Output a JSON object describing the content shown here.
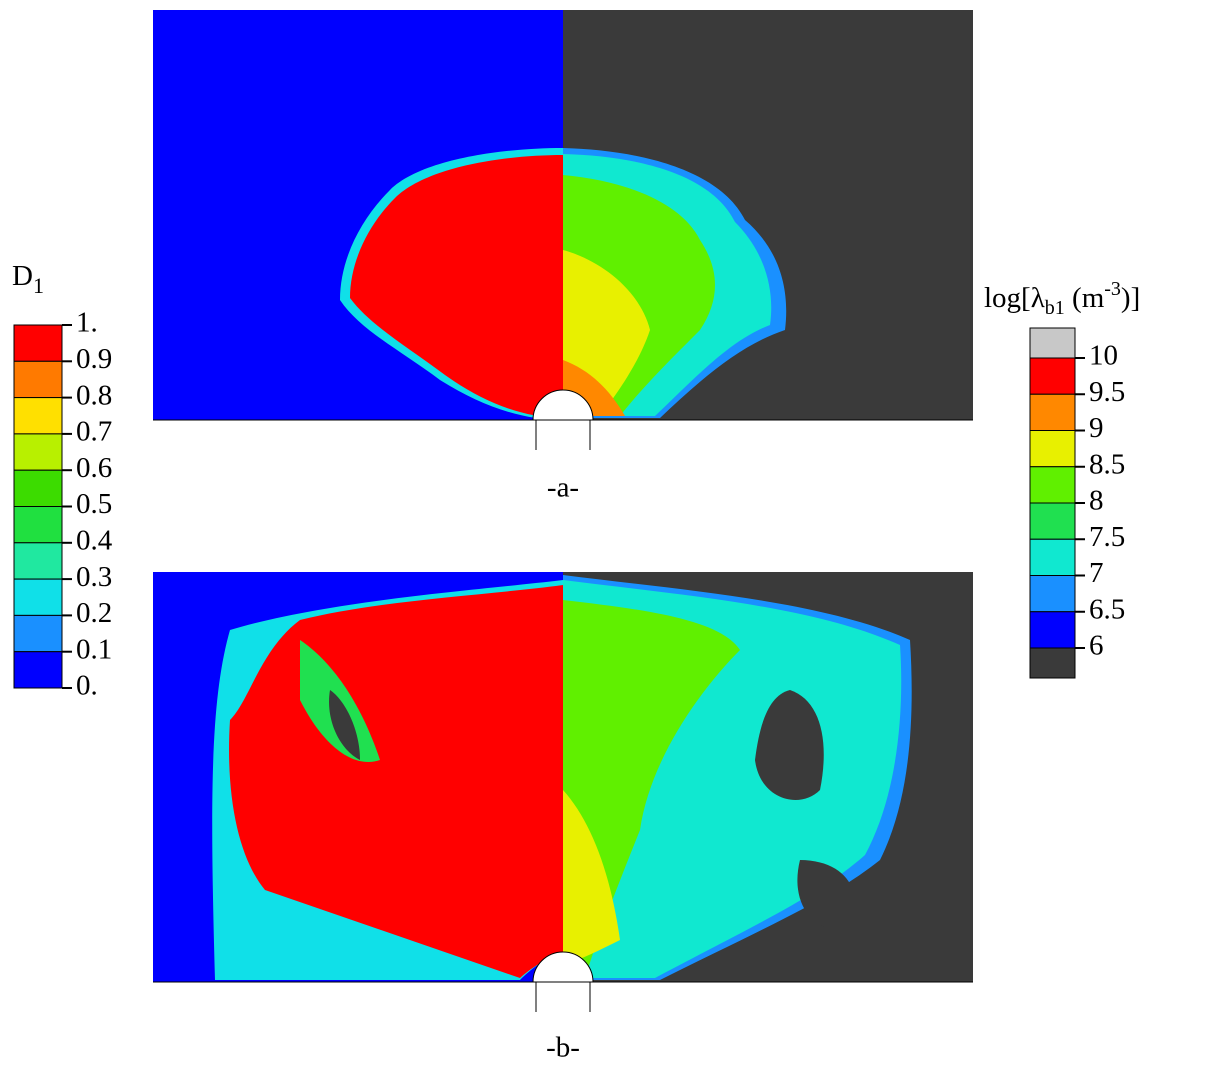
{
  "left_legend": {
    "title": {
      "symbol": "D",
      "subscript": "1"
    },
    "labels": [
      "1.",
      "0.9",
      "0.8",
      "0.7",
      "0.6",
      "0.5",
      "0.4",
      "0.3",
      "0.2",
      "0.1",
      "0."
    ],
    "colors": [
      "#ff0000",
      "#ff7a00",
      "#ffe000",
      "#b8f000",
      "#3cdc00",
      "#20e040",
      "#20e8a0",
      "#10e0e8",
      "#1a90ff",
      "#0000ff"
    ]
  },
  "right_legend": {
    "title": {
      "prefix": "log[λ",
      "subscript": "b1",
      "middle": " (m",
      "superscript": "-3",
      "suffix": ")]"
    },
    "labels": [
      "10",
      "9.5",
      "9",
      "8.5",
      "8",
      "7.5",
      "7",
      "6.5",
      "6"
    ],
    "colors": [
      "#c8c8c8",
      "#ff0000",
      "#ff8800",
      "#e8f000",
      "#60f000",
      "#20e050",
      "#10e8d0",
      "#1a90ff",
      "#0000ff",
      "#3a3a3a"
    ]
  },
  "panels": [
    {
      "label": "-a-"
    },
    {
      "label": "-b-"
    }
  ]
}
